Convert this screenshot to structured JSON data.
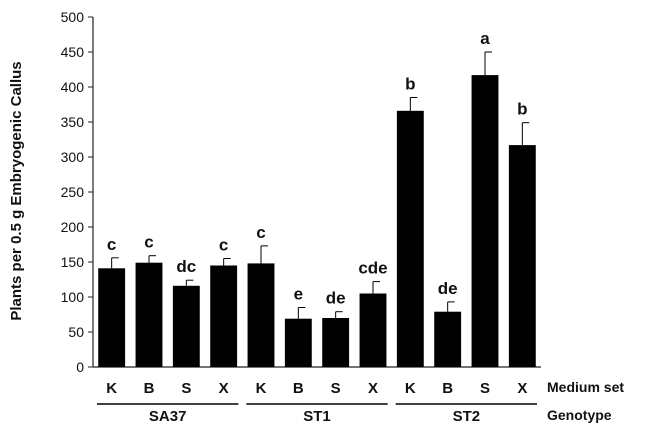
{
  "chart_data": {
    "type": "bar",
    "ylabel": "Plants per 0.5 g Embryogenic Callus",
    "ylim": [
      0,
      500
    ],
    "yticks": [
      0,
      50,
      100,
      150,
      200,
      250,
      300,
      350,
      400,
      450,
      500
    ],
    "grid": false,
    "bar_color": "#000000",
    "row_labels": {
      "medium": "Medium set",
      "genotype": "Genotype"
    },
    "groups": [
      {
        "name": "SA37",
        "bars": [
          {
            "medium": "K",
            "value": 141,
            "error": 15,
            "letter": "c"
          },
          {
            "medium": "B",
            "value": 149,
            "error": 10,
            "letter": "c"
          },
          {
            "medium": "S",
            "value": 116,
            "error": 8,
            "letter": "dc"
          },
          {
            "medium": "X",
            "value": 145,
            "error": 10,
            "letter": "c"
          }
        ]
      },
      {
        "name": "ST1",
        "bars": [
          {
            "medium": "K",
            "value": 148,
            "error": 25,
            "letter": "c"
          },
          {
            "medium": "B",
            "value": 69,
            "error": 16,
            "letter": "e"
          },
          {
            "medium": "S",
            "value": 70,
            "error": 9,
            "letter": "de"
          },
          {
            "medium": "X",
            "value": 105,
            "error": 17,
            "letter": "cde"
          }
        ]
      },
      {
        "name": "ST2",
        "bars": [
          {
            "medium": "K",
            "value": 366,
            "error": 19,
            "letter": "b"
          },
          {
            "medium": "B",
            "value": 79,
            "error": 14,
            "letter": "de"
          },
          {
            "medium": "S",
            "value": 417,
            "error": 33,
            "letter": "a"
          },
          {
            "medium": "X",
            "value": 317,
            "error": 32,
            "letter": "b"
          }
        ]
      }
    ]
  }
}
